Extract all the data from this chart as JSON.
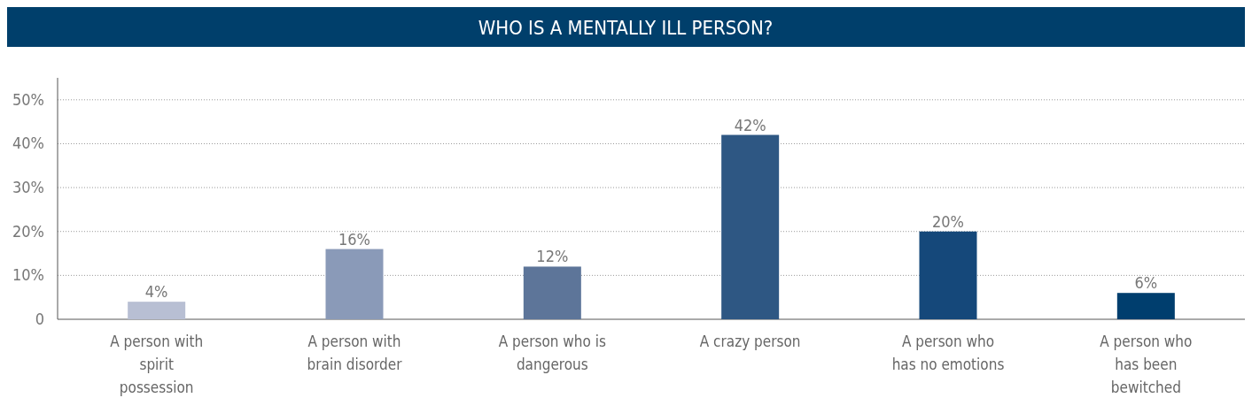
{
  "chart_data": {
    "type": "bar",
    "title": "WHO IS A MENTALLY ILL PERSON?",
    "categories": [
      "A person with spirit possession",
      "A person with brain disorder",
      "A person who is dangerous",
      "A crazy person",
      "A person who has no emotions",
      "A person who has been bewitched"
    ],
    "values": [
      4,
      16,
      12,
      42,
      20,
      6
    ],
    "colors": [
      "#b8bfd3",
      "#8a9ab8",
      "#5d7599",
      "#2e5783",
      "#15487a",
      "#003e6e"
    ],
    "value_labels": [
      "4%",
      "16%",
      "12%",
      "42%",
      "20%",
      "6%"
    ],
    "ylim": [
      0,
      55
    ],
    "yticks": [
      0,
      {
        "value": 10,
        "label": "10%"
      },
      {
        "value": 20,
        "label": "20%"
      },
      {
        "value": 30,
        "label": "30%"
      },
      {
        "value": 40,
        "label": "40%"
      },
      {
        "value": 50,
        "label": "50%"
      }
    ],
    "grid": "y"
  }
}
